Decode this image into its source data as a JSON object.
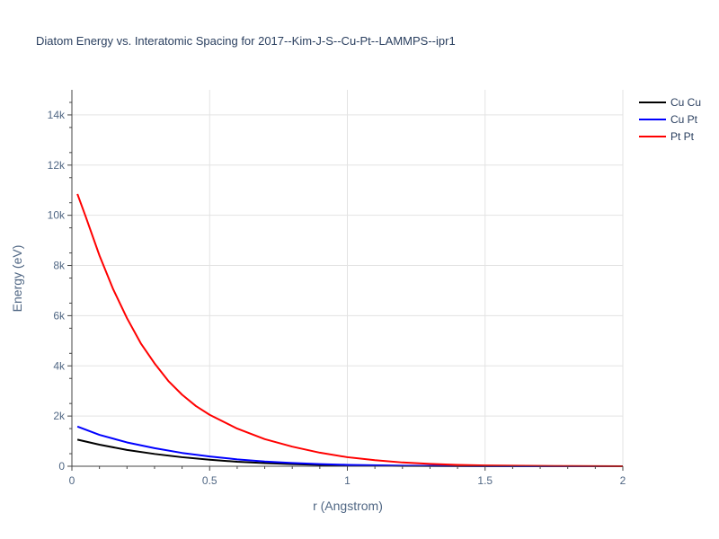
{
  "chart_data": {
    "type": "line",
    "title": "Diatom Energy vs. Interatomic Spacing for 2017--Kim-J-S--Cu-Pt--LAMMPS--ipr1",
    "xlabel": "r (Angstrom)",
    "ylabel": "Energy (eV)",
    "xlim": [
      0,
      2
    ],
    "ylim": [
      0,
      15000
    ],
    "x_ticks": [
      0,
      0.5,
      1,
      1.5,
      2
    ],
    "x_tick_labels": [
      "0",
      "0.5",
      "1",
      "1.5",
      "2"
    ],
    "y_ticks": [
      0,
      2000,
      4000,
      6000,
      8000,
      10000,
      12000,
      14000
    ],
    "y_tick_labels": [
      "0",
      "2k",
      "4k",
      "6k",
      "8k",
      "10k",
      "12k",
      "14k"
    ],
    "grid": true,
    "legend_position": "top-right",
    "series": [
      {
        "name": "Cu Cu",
        "color": "#000000",
        "x": [
          0.02,
          0.1,
          0.2,
          0.3,
          0.4,
          0.5,
          0.6,
          0.7,
          0.8,
          0.9,
          1.0,
          1.2,
          1.5,
          2.0
        ],
        "y": [
          1060,
          860,
          650,
          490,
          360,
          260,
          180,
          125,
          85,
          55,
          35,
          15,
          5,
          0
        ]
      },
      {
        "name": "Cu Pt",
        "color": "#0000ff",
        "x": [
          0.02,
          0.1,
          0.2,
          0.3,
          0.4,
          0.5,
          0.6,
          0.7,
          0.8,
          0.9,
          1.0,
          1.2,
          1.5,
          2.0
        ],
        "y": [
          1580,
          1250,
          950,
          720,
          530,
          390,
          275,
          190,
          130,
          85,
          55,
          22,
          5,
          0
        ]
      },
      {
        "name": "Pt Pt",
        "color": "#ff0000",
        "x": [
          0.02,
          0.05,
          0.1,
          0.15,
          0.2,
          0.25,
          0.3,
          0.35,
          0.4,
          0.45,
          0.5,
          0.6,
          0.7,
          0.8,
          0.9,
          1.0,
          1.1,
          1.2,
          1.3,
          1.4,
          1.5,
          1.75,
          2.0
        ],
        "y": [
          10850,
          9950,
          8400,
          7050,
          5900,
          4900,
          4100,
          3400,
          2850,
          2400,
          2050,
          1500,
          1080,
          780,
          540,
          360,
          240,
          150,
          95,
          55,
          30,
          10,
          0
        ]
      }
    ]
  }
}
